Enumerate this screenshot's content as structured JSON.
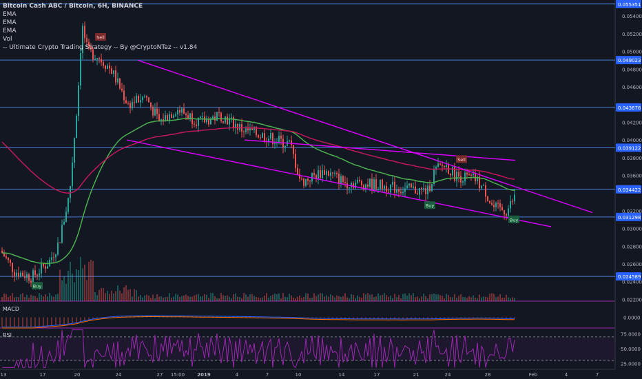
{
  "chart_data": {
    "type": "candlestick",
    "title": "Bitcoin Cash ABC / Bitcoin, 6H, BINANCE",
    "indicators": [
      "EMA",
      "EMA",
      "EMA",
      "Vol",
      "-- Ultimate Crypto Trading Strategy -- By @CryptoNTez -- v1.84"
    ],
    "y_axis": {
      "ticks": [
        "0.054000",
        "0.052000",
        "0.050000",
        "0.048000",
        "0.046000",
        "0.042000",
        "0.040000",
        "0.038000",
        "0.036000",
        "0.032000",
        "0.030000",
        "0.028000",
        "0.026000",
        "0.024000",
        "0.022000"
      ],
      "ylim": [
        0.0218,
        0.0558
      ]
    },
    "x_axis": {
      "ticks": [
        "13",
        "17",
        "20",
        "24",
        "27",
        "15:00",
        "2019",
        "4",
        "7",
        "10",
        "14",
        "17",
        "21",
        "24",
        "28",
        "Feb",
        "4",
        "7"
      ]
    },
    "horizontal_levels": [
      {
        "label": "0.055351",
        "value": 0.055351
      },
      {
        "label": "0.049023",
        "value": 0.049023
      },
      {
        "label": "0.043676",
        "value": 0.043676
      },
      {
        "label": "0.039122",
        "value": 0.039122
      },
      {
        "label": "0.034422",
        "value": 0.034422
      },
      {
        "label": "0.031298",
        "value": 0.031298
      },
      {
        "label": "0.024589",
        "value": 0.024589
      }
    ],
    "trendlines": [
      {
        "from": [
          "24",
          0.049
        ],
        "to": [
          "7",
          0.0318
        ]
      },
      {
        "from": [
          "24",
          0.04
        ],
        "to": [
          "4",
          0.0302
        ]
      },
      {
        "from": [
          "4",
          0.04
        ],
        "to": [
          "28",
          0.0377
        ]
      }
    ],
    "signals": [
      {
        "label": "Buy",
        "type": "buy"
      },
      {
        "label": "Sell",
        "type": "sell"
      },
      {
        "label": "Buy",
        "type": "buy"
      },
      {
        "label": "Sell",
        "type": "sell"
      },
      {
        "label": "Buy",
        "type": "buy"
      }
    ],
    "macd": {
      "label": "MACD",
      "ticks": [
        "0.0000"
      ]
    },
    "rsi": {
      "label": "RSI",
      "ticks": [
        "75.0000",
        "50.0000",
        "25.0000"
      ],
      "bands": [
        70,
        30
      ],
      "ylim": [
        15,
        85
      ]
    },
    "colors": {
      "background": "#131722",
      "up": "#26a69a",
      "down": "#ef5350",
      "ema_fast": "#4caf50",
      "ema_slow": "#c2185b",
      "trendline": "#d500f9",
      "level_line": "#4a7fd6",
      "pane_border": "#9c27b0",
      "rsi_line": "#9c27b0",
      "macd_line": "#2962ff",
      "signal_line": "#ff6d00"
    }
  }
}
